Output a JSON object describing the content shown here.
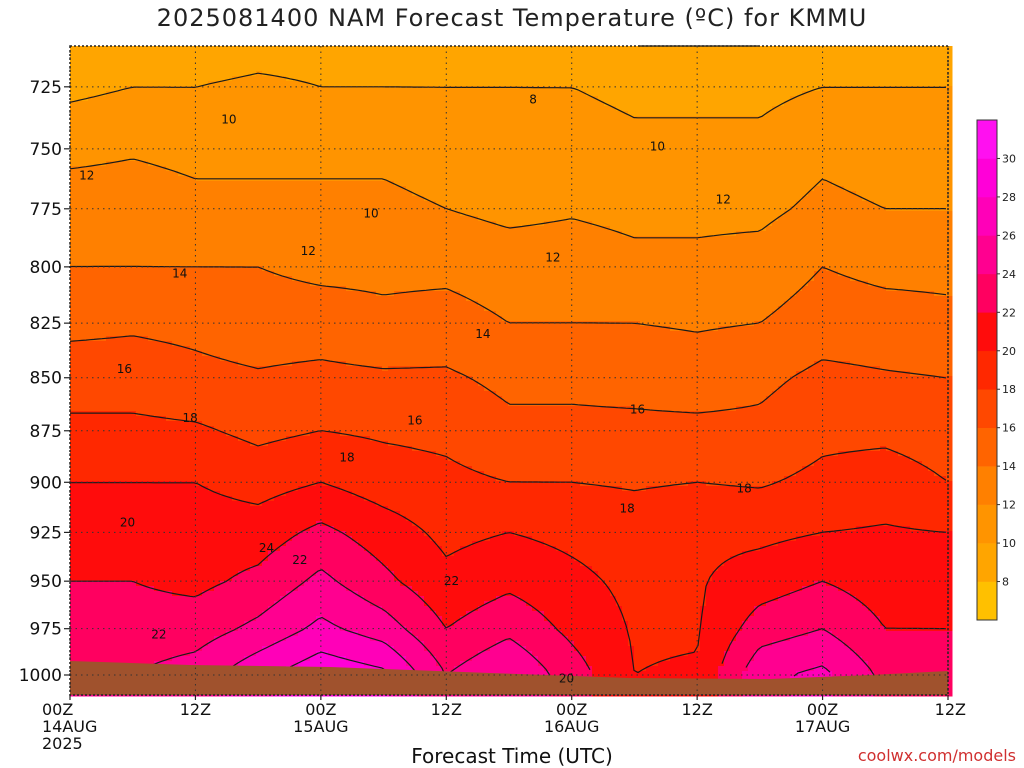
{
  "chart_data": {
    "type": "heatmap",
    "title": "2025081400 NAM Forecast Temperature (ºC) for KMMU",
    "xlabel": "Forecast Time (UTC)",
    "ylabel": "",
    "credit": "coolwx.com/models",
    "x_ticks": [
      {
        "t": 0,
        "line1": "00Z",
        "line2": "14AUG",
        "line3": "2025"
      },
      {
        "t": 12,
        "line1": "12Z"
      },
      {
        "t": 24,
        "line1": "00Z",
        "line2": "15AUG"
      },
      {
        "t": 36,
        "line1": "12Z"
      },
      {
        "t": 48,
        "line1": "00Z",
        "line2": "16AUG"
      },
      {
        "t": 60,
        "line1": "12Z"
      },
      {
        "t": 72,
        "line1": "00Z",
        "line2": "17AUG"
      },
      {
        "t": 84,
        "line1": "12Z"
      }
    ],
    "xlim": [
      0,
      84
    ],
    "y_ticks": [
      725,
      750,
      775,
      800,
      825,
      850,
      875,
      900,
      925,
      950,
      975,
      1000
    ],
    "ylim": [
      709,
      1011
    ],
    "y_scale": "log-pressure",
    "grid": true,
    "colorbar": {
      "levels": [
        6,
        8,
        10,
        12,
        14,
        16,
        18,
        20,
        22,
        24,
        26,
        28,
        30,
        32
      ],
      "tick_labels": [
        8,
        10,
        12,
        14,
        16,
        18,
        20,
        22,
        24,
        26,
        28,
        30
      ],
      "colors": [
        "#ffc000",
        "#ffa500",
        "#ff9400",
        "#ff8000",
        "#ff6400",
        "#ff4800",
        "#ff2800",
        "#ff0c0c",
        "#ff0060",
        "#ff0090",
        "#ff00b8",
        "#ff00d8",
        "#ff10f0"
      ],
      "position": "right"
    },
    "ground_color": "#a0522d",
    "temperature_profiles": [
      {
        "t": 0,
        "temps": [
          [
            709,
            8.5
          ],
          [
            725,
            9.5
          ],
          [
            750,
            11.5
          ],
          [
            775,
            13
          ],
          [
            800,
            14
          ],
          [
            825,
            15.5
          ],
          [
            850,
            17
          ],
          [
            875,
            18.5
          ],
          [
            900,
            20
          ],
          [
            925,
            21
          ],
          [
            950,
            22
          ],
          [
            975,
            23
          ],
          [
            1000,
            24
          ]
        ]
      },
      {
        "t": 6,
        "temps": [
          [
            709,
            8.5
          ],
          [
            725,
            10
          ],
          [
            750,
            11.8
          ],
          [
            775,
            13
          ],
          [
            800,
            14
          ],
          [
            825,
            15.7
          ],
          [
            850,
            17
          ],
          [
            875,
            18.5
          ],
          [
            900,
            20
          ],
          [
            925,
            21
          ],
          [
            950,
            22
          ],
          [
            975,
            22.8
          ],
          [
            1000,
            24
          ]
        ]
      },
      {
        "t": 12,
        "temps": [
          [
            709,
            8.5
          ],
          [
            725,
            10
          ],
          [
            750,
            11.5
          ],
          [
            775,
            12.5
          ],
          [
            800,
            14
          ],
          [
            825,
            15.5
          ],
          [
            850,
            16.5
          ],
          [
            875,
            18.3
          ],
          [
            900,
            20
          ],
          [
            925,
            21
          ],
          [
            950,
            21.5
          ],
          [
            975,
            23
          ],
          [
            1000,
            25
          ]
        ]
      },
      {
        "t": 18,
        "temps": [
          [
            709,
            9
          ],
          [
            725,
            10.5
          ],
          [
            750,
            11.5
          ],
          [
            775,
            12.5
          ],
          [
            800,
            14
          ],
          [
            825,
            15
          ],
          [
            850,
            16.2
          ],
          [
            875,
            17.5
          ],
          [
            900,
            19.2
          ],
          [
            925,
            21
          ],
          [
            950,
            22.5
          ],
          [
            975,
            24.5
          ],
          [
            1000,
            27.5
          ]
        ]
      },
      {
        "t": 24,
        "temps": [
          [
            709,
            9
          ],
          [
            725,
            10
          ],
          [
            750,
            11.5
          ],
          [
            775,
            12.5
          ],
          [
            800,
            13.5
          ],
          [
            825,
            15
          ],
          [
            850,
            16.5
          ],
          [
            875,
            18
          ],
          [
            900,
            20
          ],
          [
            925,
            22.5
          ],
          [
            950,
            24.5
          ],
          [
            975,
            26.5
          ],
          [
            1000,
            29.5
          ]
        ]
      },
      {
        "t": 30,
        "temps": [
          [
            709,
            9
          ],
          [
            725,
            10
          ],
          [
            750,
            11.5
          ],
          [
            775,
            12.5
          ],
          [
            800,
            13.5
          ],
          [
            825,
            14.5
          ],
          [
            850,
            16.3
          ],
          [
            875,
            17.7
          ],
          [
            900,
            19
          ],
          [
            925,
            21
          ],
          [
            950,
            22.5
          ],
          [
            975,
            25
          ],
          [
            1000,
            28.5
          ]
        ]
      },
      {
        "t": 36,
        "temps": [
          [
            709,
            9
          ],
          [
            725,
            10
          ],
          [
            750,
            11
          ],
          [
            775,
            12
          ],
          [
            800,
            13.5
          ],
          [
            825,
            14.8
          ],
          [
            850,
            16.3
          ],
          [
            875,
            17.5
          ],
          [
            900,
            18.5
          ],
          [
            925,
            19.5
          ],
          [
            950,
            20.5
          ],
          [
            975,
            22
          ],
          [
            1000,
            24
          ]
        ]
      },
      {
        "t": 42,
        "temps": [
          [
            709,
            9
          ],
          [
            725,
            10
          ],
          [
            750,
            11
          ],
          [
            775,
            11.5
          ],
          [
            800,
            13
          ],
          [
            825,
            14
          ],
          [
            850,
            15.5
          ],
          [
            875,
            16.5
          ],
          [
            900,
            18
          ],
          [
            925,
            20
          ],
          [
            950,
            21.5
          ],
          [
            975,
            23.5
          ],
          [
            1000,
            26
          ]
        ]
      },
      {
        "t": 48,
        "temps": [
          [
            709,
            8.5
          ],
          [
            725,
            10
          ],
          [
            750,
            11
          ],
          [
            775,
            11.8
          ],
          [
            800,
            13
          ],
          [
            825,
            14
          ],
          [
            850,
            15.5
          ],
          [
            875,
            16.5
          ],
          [
            900,
            18
          ],
          [
            925,
            19.5
          ],
          [
            950,
            20.5
          ],
          [
            975,
            21.5
          ],
          [
            1000,
            23
          ]
        ]
      },
      {
        "t": 54,
        "temps": [
          [
            709,
            8
          ],
          [
            725,
            9.5
          ],
          [
            750,
            10.5
          ],
          [
            775,
            11.5
          ],
          [
            800,
            12.5
          ],
          [
            825,
            14
          ],
          [
            850,
            15.3
          ],
          [
            875,
            16.5
          ],
          [
            900,
            17.8
          ],
          [
            925,
            19
          ],
          [
            950,
            19.5
          ],
          [
            975,
            19.8
          ],
          [
            1000,
            20
          ]
        ]
      },
      {
        "t": 60,
        "temps": [
          [
            709,
            8
          ],
          [
            725,
            9.5
          ],
          [
            750,
            10.5
          ],
          [
            775,
            11.5
          ],
          [
            800,
            12.5
          ],
          [
            825,
            13.8
          ],
          [
            850,
            15
          ],
          [
            875,
            16.5
          ],
          [
            900,
            18
          ],
          [
            925,
            19.5
          ],
          [
            950,
            19.8
          ],
          [
            975,
            19.8
          ],
          [
            1000,
            20.2
          ]
        ]
      },
      {
        "t": 66,
        "temps": [
          [
            709,
            8
          ],
          [
            725,
            9.5
          ],
          [
            750,
            10.5
          ],
          [
            775,
            11.5
          ],
          [
            800,
            12.8
          ],
          [
            825,
            14
          ],
          [
            850,
            15.5
          ],
          [
            875,
            16.5
          ],
          [
            900,
            17.8
          ],
          [
            925,
            19.5
          ],
          [
            950,
            21
          ],
          [
            975,
            23
          ],
          [
            1000,
            25.5
          ]
        ]
      },
      {
        "t": 72,
        "temps": [
          [
            709,
            8.5
          ],
          [
            725,
            10
          ],
          [
            750,
            11.5
          ],
          [
            775,
            12.5
          ],
          [
            800,
            14
          ],
          [
            825,
            15
          ],
          [
            850,
            16.5
          ],
          [
            875,
            17.5
          ],
          [
            900,
            18.5
          ],
          [
            925,
            20
          ],
          [
            950,
            22
          ],
          [
            975,
            24
          ],
          [
            1000,
            26.5
          ]
        ]
      },
      {
        "t": 78,
        "temps": [
          [
            709,
            9
          ],
          [
            725,
            10
          ],
          [
            750,
            11
          ],
          [
            775,
            12
          ],
          [
            800,
            13.5
          ],
          [
            825,
            14.8
          ],
          [
            850,
            16.2
          ],
          [
            875,
            17.5
          ],
          [
            900,
            19
          ],
          [
            925,
            20.2
          ],
          [
            950,
            21
          ],
          [
            975,
            22
          ],
          [
            1000,
            23.5
          ]
        ]
      },
      {
        "t": 84,
        "temps": [
          [
            709,
            9
          ],
          [
            725,
            10
          ],
          [
            750,
            11
          ],
          [
            775,
            12
          ],
          [
            800,
            13.5
          ],
          [
            825,
            14.5
          ],
          [
            850,
            16
          ],
          [
            875,
            17
          ],
          [
            900,
            18
          ],
          [
            925,
            20
          ],
          [
            950,
            21
          ],
          [
            975,
            22
          ],
          [
            1000,
            23
          ]
        ]
      }
    ],
    "contour_labels": [
      {
        "text": "8",
        "t": 44.3,
        "p": 730
      },
      {
        "text": "10",
        "t": 15.2,
        "p": 738
      },
      {
        "text": "10",
        "t": 28.8,
        "p": 777
      },
      {
        "text": "10",
        "t": 56.2,
        "p": 749
      },
      {
        "text": "12",
        "t": 1.6,
        "p": 761
      },
      {
        "text": "12",
        "t": 22.8,
        "p": 793
      },
      {
        "text": "12",
        "t": 46.2,
        "p": 796
      },
      {
        "text": "12",
        "t": 62.5,
        "p": 771
      },
      {
        "text": "14",
        "t": 10.5,
        "p": 803
      },
      {
        "text": "14",
        "t": 39.5,
        "p": 830
      },
      {
        "text": "16",
        "t": 5.2,
        "p": 846
      },
      {
        "text": "16",
        "t": 33,
        "p": 870
      },
      {
        "text": "16",
        "t": 54.3,
        "p": 865
      },
      {
        "text": "18",
        "t": 11.5,
        "p": 869
      },
      {
        "text": "18",
        "t": 26.5,
        "p": 888
      },
      {
        "text": "18",
        "t": 53.3,
        "p": 913
      },
      {
        "text": "18",
        "t": 64.5,
        "p": 903
      },
      {
        "text": "20",
        "t": 5.5,
        "p": 920
      },
      {
        "text": "20",
        "t": 47.5,
        "p": 1002
      },
      {
        "text": "22",
        "t": 8.5,
        "p": 978
      },
      {
        "text": "22",
        "t": 22,
        "p": 939
      },
      {
        "text": "22",
        "t": 36.5,
        "p": 950
      },
      {
        "text": "24",
        "t": 18.8,
        "p": 933
      }
    ]
  }
}
